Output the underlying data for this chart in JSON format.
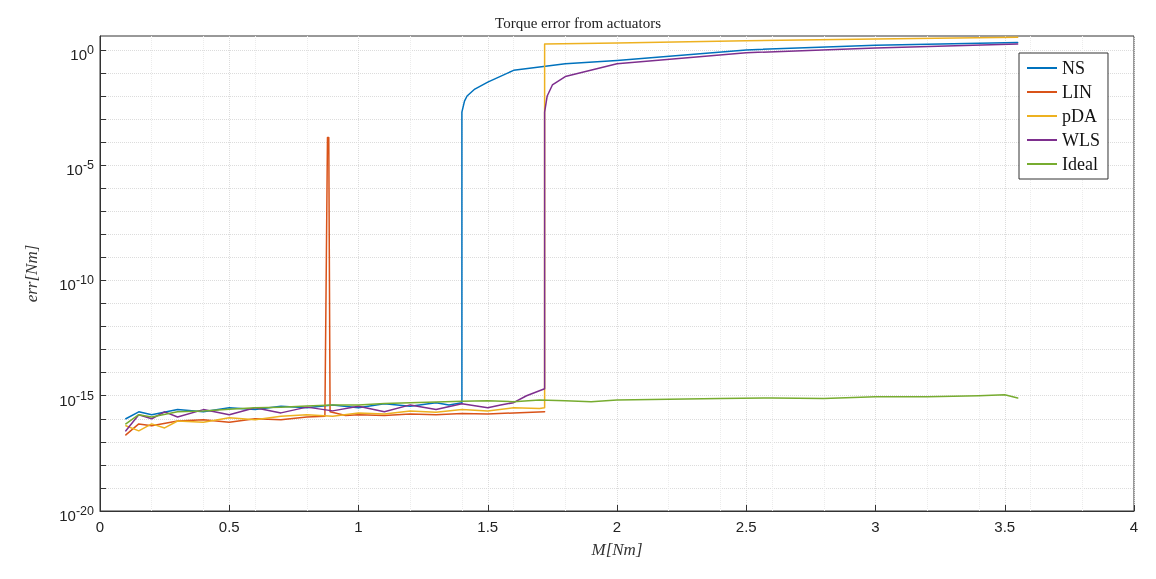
{
  "chart_data": {
    "type": "line",
    "title": "Torque error from actuators",
    "xlabel": "M[Nm]",
    "ylabel": "err[Nm]",
    "log": "y",
    "grid": true,
    "legend": "top right",
    "line_style": "solid",
    "marker": "none",
    "xlim": [
      0,
      4
    ],
    "xticks": [
      0,
      0.5,
      1,
      1.5,
      2,
      2.5,
      3,
      3.5,
      4
    ],
    "ylim": [
      1e-20,
      4
    ],
    "yticks": [
      {
        "value": 1e-20,
        "label": "10$^{-20}$"
      },
      {
        "value": 1e-19,
        "label": null
      },
      {
        "value": 1e-18,
        "label": null
      },
      {
        "value": 1e-17,
        "label": null
      },
      {
        "value": 1e-16,
        "label": null
      },
      {
        "value": 1e-15,
        "label": "10$^{-15}$"
      },
      {
        "value": 1e-14,
        "label": null
      },
      {
        "value": 1e-13,
        "label": null
      },
      {
        "value": 1e-12,
        "label": null
      },
      {
        "value": 1e-11,
        "label": null
      },
      {
        "value": 1e-10,
        "label": "10$^{-10}$"
      },
      {
        "value": 1e-09,
        "label": null
      },
      {
        "value": 1e-08,
        "label": null
      },
      {
        "value": 1e-07,
        "label": null
      },
      {
        "value": 1e-06,
        "label": null
      },
      {
        "value": 1e-05,
        "label": "10$^{-5}$"
      },
      {
        "value": 0.0001,
        "label": null
      },
      {
        "value": 0.001,
        "label": null
      },
      {
        "value": 0.01,
        "label": null
      },
      {
        "value": 0.1,
        "label": null
      },
      {
        "value": 1,
        "label": "10$^{0}$"
      }
    ],
    "series": [
      {
        "name": "NS",
        "color": "#0072bd",
        "x": [
          0.1,
          0.15,
          0.2,
          0.3,
          0.4,
          0.5,
          0.6,
          0.7,
          0.8,
          0.9,
          1.0,
          1.1,
          1.2,
          1.3,
          1.35,
          1.4,
          1.4,
          1.41,
          1.42,
          1.45,
          1.5,
          1.6,
          1.8,
          2.0,
          2.5,
          3.0,
          3.55
        ],
        "values": [
          1e-16,
          2e-16,
          1.5e-16,
          2.5e-16,
          2e-16,
          3e-16,
          2.5e-16,
          3.5e-16,
          3e-16,
          4e-16,
          3e-16,
          4.5e-16,
          3.5e-16,
          5e-16,
          4e-16,
          5e-16,
          0.002,
          0.006,
          0.01,
          0.02,
          0.04,
          0.13,
          0.25,
          0.35,
          1,
          1.6,
          2.1
        ]
      },
      {
        "name": "LIN",
        "color": "#d95319",
        "x": [
          0.1,
          0.15,
          0.2,
          0.3,
          0.4,
          0.5,
          0.6,
          0.7,
          0.8,
          0.87,
          0.88,
          0.885,
          0.89,
          0.95,
          1.0,
          1.1,
          1.2,
          1.3,
          1.4,
          1.5,
          1.6,
          1.72
        ],
        "values": [
          2e-17,
          6e-17,
          5e-17,
          8e-17,
          9e-17,
          7e-17,
          1e-16,
          9e-17,
          1.2e-16,
          1.3e-16,
          0.00016,
          0.00016,
          2e-16,
          1.4e-16,
          1.5e-16,
          1.4e-16,
          1.6e-16,
          1.5e-16,
          1.7e-16,
          1.6e-16,
          1.8e-16,
          2e-16
        ]
      },
      {
        "name": "pDA",
        "color": "#edb120",
        "x": [
          0.1,
          0.15,
          0.2,
          0.25,
          0.3,
          0.4,
          0.5,
          0.6,
          0.7,
          0.8,
          0.9,
          1.0,
          1.1,
          1.2,
          1.3,
          1.4,
          1.5,
          1.6,
          1.7,
          1.72,
          1.72,
          2.0,
          2.5,
          3.0,
          3.55
        ],
        "values": [
          5e-17,
          3e-17,
          6e-17,
          4e-17,
          8e-17,
          7e-17,
          1.1e-16,
          9e-17,
          1.3e-16,
          1.5e-16,
          1.3e-16,
          1.8e-16,
          1.6e-16,
          2.2e-16,
          1.9e-16,
          2.5e-16,
          2.2e-16,
          3e-16,
          2.8e-16,
          3e-16,
          1.8,
          2,
          2.5,
          3,
          3.5
        ]
      },
      {
        "name": "WLS",
        "color": "#7e2f8e",
        "x": [
          0.1,
          0.15,
          0.2,
          0.25,
          0.3,
          0.4,
          0.5,
          0.6,
          0.7,
          0.8,
          0.9,
          1.0,
          1.1,
          1.2,
          1.3,
          1.4,
          1.5,
          1.55,
          1.6,
          1.65,
          1.72,
          1.72,
          1.73,
          1.75,
          1.8,
          2.0,
          2.5,
          3.0,
          3.55
        ],
        "values": [
          3e-17,
          1.5e-16,
          1e-16,
          2e-16,
          1.2e-16,
          2.5e-16,
          1.5e-16,
          3e-16,
          1.8e-16,
          3.2e-16,
          2.2e-16,
          3.5e-16,
          2e-16,
          4e-16,
          2.5e-16,
          4.5e-16,
          3e-16,
          4e-16,
          5e-16,
          1e-15,
          2e-15,
          0.002,
          0.01,
          0.03,
          0.07,
          0.25,
          0.75,
          1.2,
          1.8
        ]
      },
      {
        "name": "Ideal",
        "color": "#77ac30",
        "x": [
          0.1,
          0.15,
          0.2,
          0.3,
          0.4,
          0.5,
          0.6,
          0.7,
          0.8,
          0.9,
          1.0,
          1.1,
          1.2,
          1.3,
          1.4,
          1.5,
          1.6,
          1.7,
          1.8,
          1.9,
          2.0,
          2.2,
          2.4,
          2.6,
          2.8,
          3.0,
          3.2,
          3.4,
          3.5,
          3.55
        ],
        "values": [
          6e-17,
          1.5e-16,
          1.2e-16,
          2e-16,
          2.2e-16,
          2.6e-16,
          3e-16,
          3.2e-16,
          3.6e-16,
          4e-16,
          4e-16,
          4.6e-16,
          5e-16,
          5.4e-16,
          5.8e-16,
          6e-16,
          5.5e-16,
          6.5e-16,
          6e-16,
          5.5e-16,
          6.5e-16,
          7e-16,
          7.5e-16,
          8e-16,
          7.5e-16,
          9e-16,
          9e-16,
          1e-15,
          1.1e-15,
          8e-16
        ]
      }
    ]
  }
}
